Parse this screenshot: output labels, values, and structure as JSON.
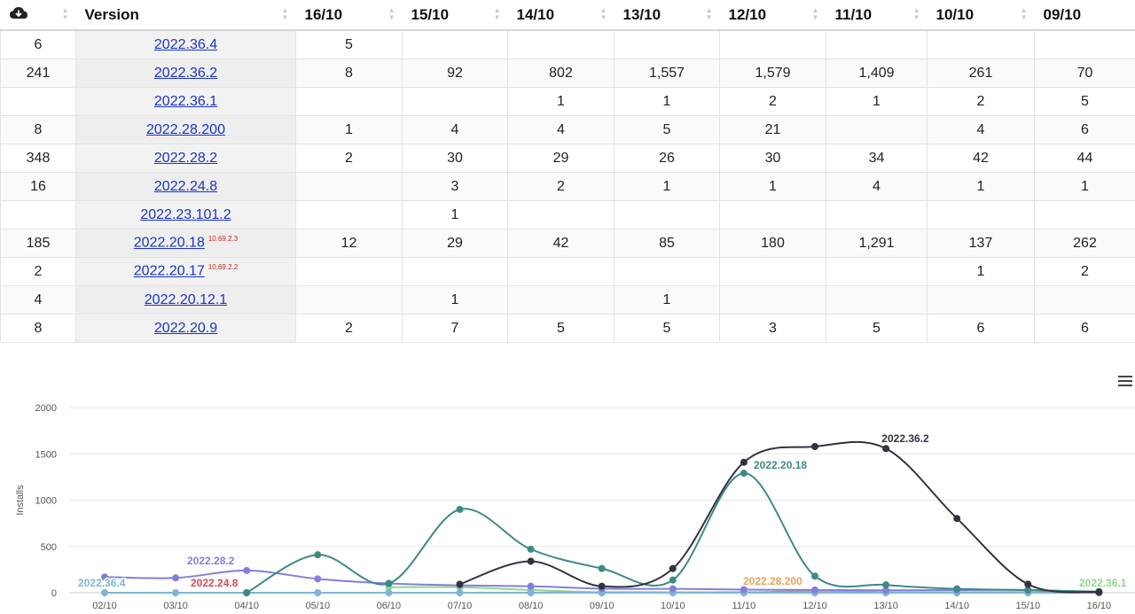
{
  "table": {
    "header": {
      "downloads_icon": "cloud-download-icon",
      "version": "Version",
      "dates": [
        "16/10",
        "15/10",
        "14/10",
        "13/10",
        "12/10",
        "11/10",
        "10/10",
        "09/10"
      ]
    },
    "rows": [
      {
        "total": "6",
        "version": "2022.36.4",
        "sup": "",
        "cells": [
          "5",
          "",
          "",
          "",
          "",
          "",
          "",
          ""
        ]
      },
      {
        "total": "241",
        "version": "2022.36.2",
        "sup": "",
        "cells": [
          "8",
          "92",
          "802",
          "1,557",
          "1,579",
          "1,409",
          "261",
          "70"
        ]
      },
      {
        "total": "",
        "version": "2022.36.1",
        "sup": "",
        "cells": [
          "",
          "",
          "1",
          "1",
          "2",
          "1",
          "2",
          "5"
        ]
      },
      {
        "total": "8",
        "version": "2022.28.200",
        "sup": "",
        "cells": [
          "1",
          "4",
          "4",
          "5",
          "21",
          "",
          "4",
          "6"
        ]
      },
      {
        "total": "348",
        "version": "2022.28.2",
        "sup": "",
        "cells": [
          "2",
          "30",
          "29",
          "26",
          "30",
          "34",
          "42",
          "44"
        ]
      },
      {
        "total": "16",
        "version": "2022.24.8",
        "sup": "",
        "cells": [
          "",
          "3",
          "2",
          "1",
          "1",
          "4",
          "1",
          "1"
        ]
      },
      {
        "total": "",
        "version": "2022.23.101.2",
        "sup": "",
        "cells": [
          "",
          "1",
          "",
          "",
          "",
          "",
          "",
          ""
        ]
      },
      {
        "total": "185",
        "version": "2022.20.18",
        "sup": "10.69.2.3",
        "cells": [
          "12",
          "29",
          "42",
          "85",
          "180",
          "1,291",
          "137",
          "262"
        ]
      },
      {
        "total": "2",
        "version": "2022.20.17",
        "sup": "10.69.2.2",
        "cells": [
          "",
          "",
          "",
          "",
          "",
          "",
          "1",
          "2"
        ]
      },
      {
        "total": "4",
        "version": "2022.20.12.1",
        "sup": "",
        "cells": [
          "",
          "1",
          "",
          "1",
          "",
          "",
          "",
          ""
        ]
      },
      {
        "total": "8",
        "version": "2022.20.9",
        "sup": "",
        "cells": [
          "2",
          "7",
          "5",
          "5",
          "3",
          "5",
          "6",
          "6"
        ]
      }
    ]
  },
  "chart_data": {
    "type": "line",
    "ylabel": "Installs",
    "ylim": [
      0,
      2000
    ],
    "yticks": [
      0,
      500,
      1000,
      1500,
      2000
    ],
    "categories": [
      "02/10",
      "03/10",
      "04/10",
      "05/10",
      "06/10",
      "07/10",
      "08/10",
      "09/10",
      "10/10",
      "11/10",
      "12/10",
      "13/10",
      "14/10",
      "15/10",
      "16/10"
    ],
    "series": [
      {
        "name": "2022.36.2",
        "color": "#333340",
        "values": [
          null,
          null,
          null,
          null,
          null,
          92,
          340,
          70,
          261,
          1409,
          1579,
          1557,
          802,
          92,
          8
        ]
      },
      {
        "name": "2022.20.18",
        "color": "#3d8a85",
        "values": [
          null,
          null,
          0,
          410,
          100,
          900,
          470,
          262,
          137,
          1291,
          180,
          85,
          42,
          29,
          12
        ]
      },
      {
        "name": "2022.28.2",
        "color": "#8080d8",
        "values": [
          170,
          160,
          240,
          150,
          100,
          80,
          70,
          44,
          42,
          34,
          30,
          26,
          29,
          30,
          2
        ]
      },
      {
        "name": "2022.36.4",
        "color": "#7fb4d8",
        "values": [
          0,
          0,
          0,
          0,
          0,
          0,
          0,
          0,
          0,
          0,
          0,
          0,
          0,
          0,
          5
        ]
      },
      {
        "name": "2022.24.8",
        "color": "#d04c5a",
        "values": [
          null,
          null,
          0,
          null,
          null,
          null,
          null,
          1,
          1,
          4,
          1,
          1,
          2,
          3,
          0
        ]
      },
      {
        "name": "2022.28.200",
        "color": "#e8a05a",
        "values": [
          null,
          null,
          null,
          null,
          null,
          null,
          null,
          6,
          4,
          0,
          21,
          5,
          4,
          4,
          1
        ]
      },
      {
        "name": "2022.36.1",
        "color": "#8fd88f",
        "values": [
          null,
          null,
          null,
          null,
          60,
          60,
          30,
          5,
          2,
          1,
          2,
          1,
          1,
          0,
          0
        ]
      }
    ]
  }
}
